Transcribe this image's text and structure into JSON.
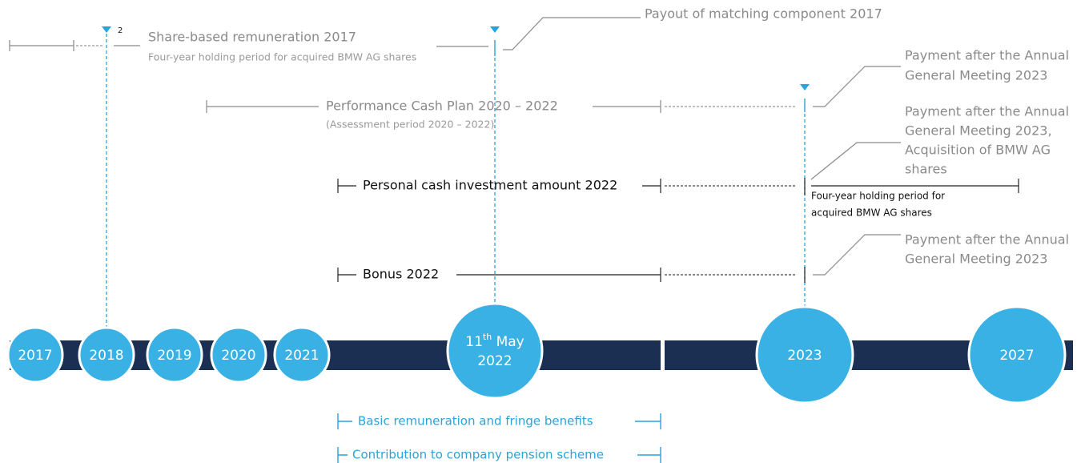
{
  "share_based": {
    "title": "Share-based remuneration 2017",
    "footnote": "2",
    "note": "Four-year holding period for acquired BMW AG shares"
  },
  "payout": "Payout of matching component 2017",
  "performance_cash": {
    "title": "Performance Cash Plan 2020 – 2022",
    "note": "(Assessment period 2020 – 2022)",
    "payment": [
      "Payment after the Annual",
      "General Meeting 2023"
    ]
  },
  "personal_cash": {
    "title": "Personal cash investment amount 2022",
    "payment": [
      "Payment after the Annual",
      "General Meeting 2023,",
      "Acquisition of BMW AG",
      "shares"
    ],
    "holding": [
      "Four-year holding period for",
      "acquired BMW AG shares"
    ]
  },
  "bonus": {
    "title": "Bonus 2022",
    "payment": [
      "Payment after the Annual",
      "General Meeting 2023"
    ]
  },
  "timeline": {
    "years": [
      "2017",
      "2018",
      "2019",
      "2020",
      "2021"
    ],
    "event": {
      "day": "11",
      "ordinal": "th",
      "month": "May",
      "year": "2022"
    },
    "later": [
      "2023",
      "2027"
    ]
  },
  "bottom": [
    "Basic remuneration and fringe benefits",
    "Contribution to company pension scheme"
  ]
}
